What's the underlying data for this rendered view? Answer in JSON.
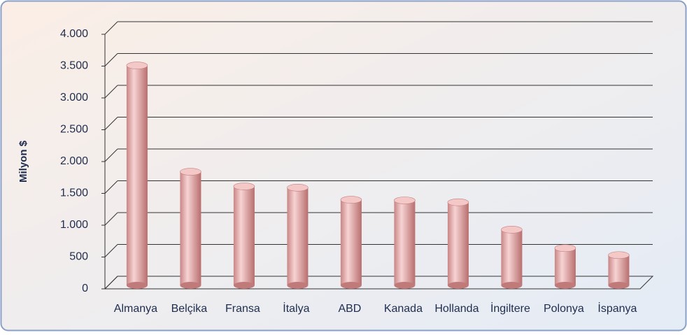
{
  "chart_data": {
    "type": "bar",
    "y_label": "Milyon $",
    "categories": [
      "Almanya",
      "Belçika",
      "Fransa",
      "İtalya",
      "ABD",
      "Kanada",
      "Hollanda",
      "İngiltere",
      "Polonya",
      "İspanya"
    ],
    "values": [
      3620,
      1950,
      1720,
      1700,
      1510,
      1500,
      1470,
      1040,
      750,
      640
    ],
    "color": "#f0b7b7",
    "ylim": [
      0,
      4000
    ],
    "yticks": [
      0,
      500,
      {
        "value": 1000,
        "label": "1.000"
      },
      {
        "value": 1500,
        "label": "1.500"
      },
      {
        "value": 2000,
        "label": "2.000"
      },
      {
        "value": 2500,
        "label": "2.500"
      },
      {
        "value": 3000,
        "label": "3.000"
      },
      {
        "value": 3500,
        "label": "3.500"
      },
      {
        "value": 4000,
        "label": "4.000"
      }
    ],
    "grid": true
  }
}
